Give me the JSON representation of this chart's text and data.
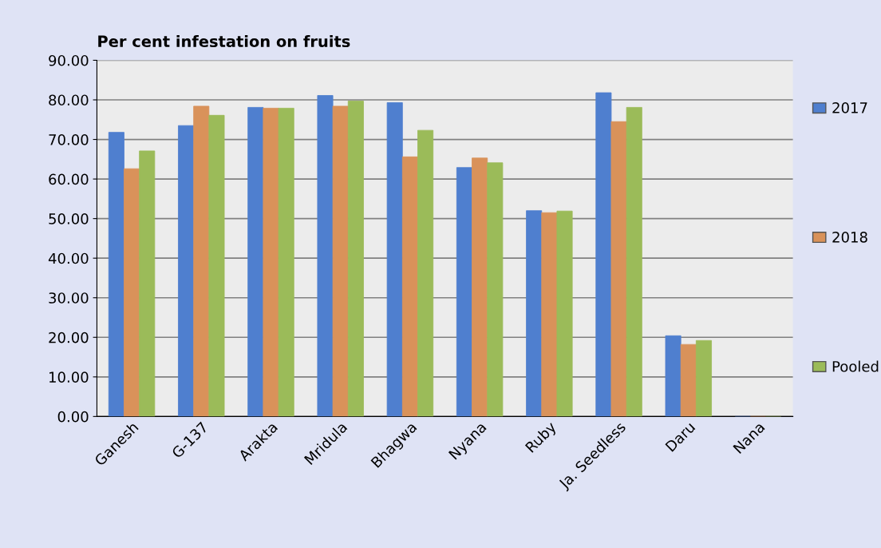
{
  "chart_data": {
    "type": "bar",
    "title": "Per cent infestation on fruits",
    "categories": [
      "Ganesh",
      "G-137",
      "Arakta",
      "Mridula",
      "Bhagwa",
      "Nyana",
      "Ruby",
      "Ja. Seedless",
      "Daru",
      "Nana"
    ],
    "series": [
      {
        "name": "2017",
        "color": "#4f7fcf",
        "values": [
          71.8,
          73.5,
          78.1,
          81.1,
          79.3,
          62.9,
          52.0,
          81.8,
          20.4,
          0
        ]
      },
      {
        "name": "2018",
        "color": "#d9925a",
        "values": [
          62.6,
          78.4,
          77.9,
          78.4,
          65.6,
          65.3,
          51.5,
          74.5,
          18.2,
          0
        ]
      },
      {
        "name": "Pooled",
        "color": "#9bbb59",
        "values": [
          67.1,
          76.1,
          77.9,
          79.7,
          72.3,
          64.1,
          51.9,
          78.1,
          19.2,
          0
        ]
      }
    ],
    "ylim": [
      0,
      90
    ],
    "yticks": [
      {
        "value": 0,
        "label": "0.00"
      },
      {
        "value": 10,
        "label": "10.00"
      },
      {
        "value": 20,
        "label": "20.00"
      },
      {
        "value": 30,
        "label": "30.00"
      },
      {
        "value": 40,
        "label": "40.00"
      },
      {
        "value": 50,
        "label": "50.00"
      },
      {
        "value": 60,
        "label": "60.00"
      },
      {
        "value": 70,
        "label": "70.00"
      },
      {
        "value": 80,
        "label": "80.00"
      },
      {
        "value": 90,
        "label": "90.00"
      }
    ],
    "grid": "y",
    "legend": "right"
  }
}
